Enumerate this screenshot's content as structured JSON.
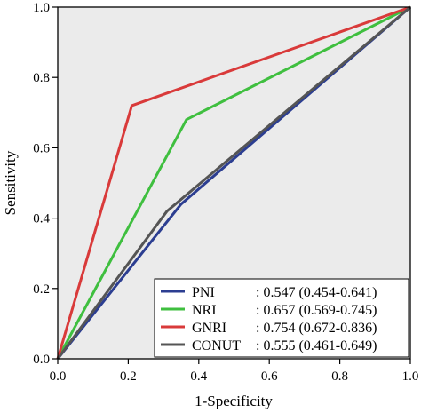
{
  "chart_data": {
    "type": "line",
    "title": "",
    "xlabel": "1-Specificity",
    "ylabel": "Sensitivity",
    "xlim": [
      0,
      1
    ],
    "ylim": [
      0,
      1
    ],
    "x_ticks": [
      "0.0",
      "0.2",
      "0.4",
      "0.6",
      "0.8",
      "1.0"
    ],
    "y_ticks": [
      "0.0",
      "0.2",
      "0.4",
      "0.6",
      "0.8",
      "1.0"
    ],
    "grid": false,
    "plot_background": "#ebebeb",
    "legend_position": "bottom-right",
    "series": [
      {
        "name": "PNI",
        "label_value": ": 0.547 (0.454-0.641)",
        "color": "#2c3e91",
        "points": [
          [
            0,
            0
          ],
          [
            0.35,
            0.44
          ],
          [
            1,
            1
          ]
        ]
      },
      {
        "name": "NRI",
        "label_value": ": 0.657 (0.569-0.745)",
        "color": "#3fbf3f",
        "points": [
          [
            0,
            0
          ],
          [
            0.365,
            0.68
          ],
          [
            1,
            1
          ]
        ]
      },
      {
        "name": "GNRI",
        "label_value": ": 0.754 (0.672-0.836)",
        "color": "#d93a3a",
        "points": [
          [
            0,
            0
          ],
          [
            0.21,
            0.72
          ],
          [
            1,
            1
          ]
        ]
      },
      {
        "name": "CONUT",
        "label_value": ": 0.555 (0.461-0.649)",
        "color": "#555555",
        "points": [
          [
            0,
            0
          ],
          [
            0.31,
            0.42
          ],
          [
            1,
            1
          ]
        ]
      }
    ]
  }
}
